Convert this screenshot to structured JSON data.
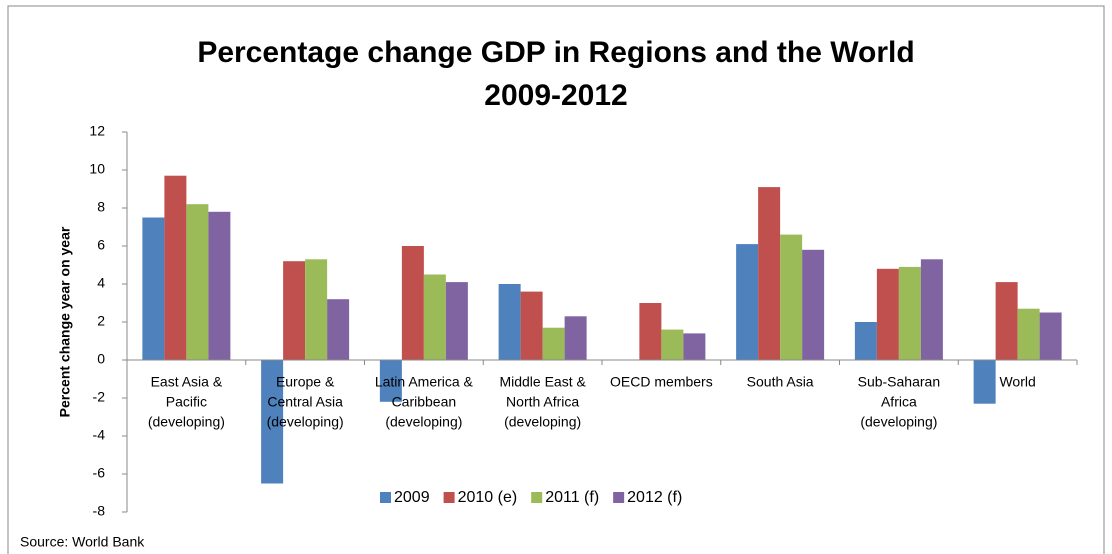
{
  "chart_data": {
    "type": "bar",
    "title": [
      "Percentage change GDP in Regions and the World",
      "2009-2012"
    ],
    "y_label": "Percent change year on year",
    "source": "Source: World Bank",
    "categories": [
      [
        "East Asia &",
        "Pacific",
        "(developing)"
      ],
      [
        "Europe &",
        "Central Asia",
        "(developing)"
      ],
      [
        "Latin America &",
        "Caribbean",
        "(developing)"
      ],
      [
        "Middle East &",
        "North Africa",
        "(developing)"
      ],
      [
        "OECD members"
      ],
      [
        "South Asia"
      ],
      [
        "Sub-Saharan",
        "Africa",
        "(developing)"
      ],
      [
        "World"
      ]
    ],
    "series": [
      {
        "name": "2009",
        "color": "#4f81bd",
        "values": [
          7.5,
          -6.5,
          -2.2,
          4.0,
          0,
          6.1,
          2.0,
          -2.3
        ]
      },
      {
        "name": "2010 (e)",
        "color": "#c0504d",
        "values": [
          9.7,
          5.2,
          6.0,
          3.6,
          3.0,
          9.1,
          4.8,
          4.1
        ]
      },
      {
        "name": "2011 (f)",
        "color": "#9bbb59",
        "values": [
          8.2,
          5.3,
          4.5,
          1.7,
          1.6,
          6.6,
          4.9,
          2.7
        ]
      },
      {
        "name": "2012 (f)",
        "color": "#8064a2",
        "values": [
          7.8,
          3.2,
          4.1,
          2.3,
          1.4,
          5.8,
          5.3,
          2.5
        ]
      }
    ],
    "ylim": [
      -8,
      12
    ],
    "yticks": [
      -8,
      -6,
      -4,
      -2,
      0,
      2,
      4,
      6,
      8,
      10,
      12
    ],
    "grid": false,
    "legend": "bottom"
  }
}
